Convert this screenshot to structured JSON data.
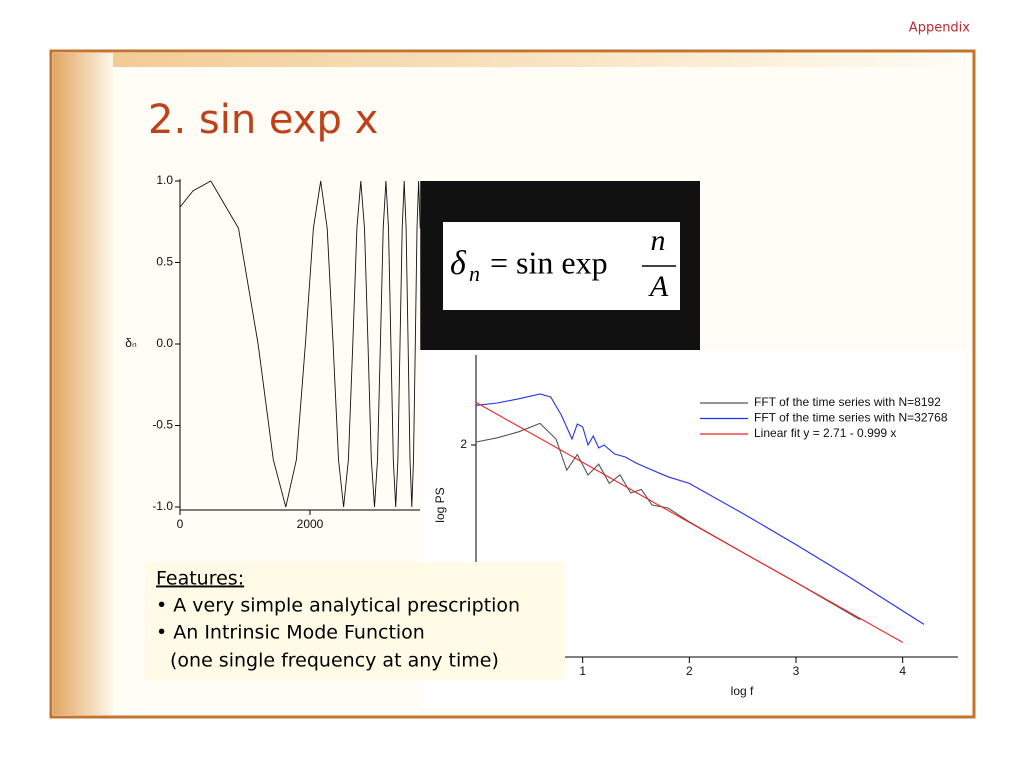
{
  "header": {
    "label": "Appendix"
  },
  "title": "2. sin exp x",
  "formula": {
    "symbol": "δ",
    "subscript": "n",
    "rhs": "= sin exp",
    "numerator": "n",
    "denominator": "A"
  },
  "features": {
    "heading": "Features:",
    "items": [
      "• A very simple analytical prescription",
      "• An Intrinsic Mode Function",
      "(one single frequency at any time)"
    ]
  },
  "chart_data": [
    {
      "type": "line",
      "ylabel": "δₙ",
      "color": "#111111",
      "x": [
        0,
        200,
        474,
        900,
        1202,
        1436,
        1628,
        1790,
        1930,
        2053,
        2164,
        2264,
        2355,
        2439,
        2517,
        2590,
        2658,
        2721,
        2781,
        2838,
        2892,
        2943,
        2992,
        3039,
        3083,
        3126,
        3167,
        3207,
        3245,
        3282,
        3318,
        3352,
        3385,
        3418,
        3449,
        3479,
        3509,
        3538,
        3566,
        3593,
        3620,
        3646,
        3671,
        3696
      ],
      "values": [
        0.84,
        0.94,
        1,
        0.71,
        0,
        -0.71,
        -1,
        -0.71,
        0,
        0.71,
        1,
        0.71,
        0,
        -0.71,
        -1,
        -0.71,
        0,
        0.71,
        1,
        0.71,
        0,
        -0.71,
        -1,
        -0.71,
        0,
        0.71,
        1,
        0.71,
        0,
        -0.71,
        -1,
        -0.71,
        0,
        0.71,
        1,
        0.71,
        0,
        -0.71,
        -1,
        -0.71,
        0,
        0.71,
        1,
        0.71
      ],
      "xlim": [
        0,
        8000
      ],
      "xticks": [
        0,
        2000
      ],
      "ylim": [
        -1,
        1
      ],
      "yticks": [
        {
          "value": 1,
          "label": "1.0"
        },
        0.5,
        {
          "value": 0,
          "label": "0.0"
        },
        -0.5,
        {
          "value": -1,
          "label": "-1.0"
        }
      ]
    },
    {
      "type": "line",
      "xlabel": "log f",
      "ylabel": "log PS",
      "legend": "upper right",
      "xlim": [
        0,
        4.5
      ],
      "xticks": [
        1,
        2,
        3,
        4
      ],
      "ylim": [
        -1.5,
        3.5
      ],
      "yticks": [
        2
      ],
      "series": [
        {
          "name": "FFT of the time series with N=8192",
          "color": "#555555",
          "x": [
            0,
            0.2,
            0.4,
            0.6,
            0.75,
            0.85,
            0.95,
            1.05,
            1.15,
            1.25,
            1.35,
            1.45,
            1.55,
            1.65,
            1.8,
            2.0,
            2.5,
            3.0,
            3.6
          ],
          "values": [
            2.05,
            2.12,
            2.22,
            2.36,
            2.1,
            1.58,
            1.84,
            1.5,
            1.68,
            1.36,
            1.5,
            1.2,
            1.26,
            1.0,
            0.95,
            0.72,
            0.21,
            -0.29,
            -0.91
          ]
        },
        {
          "name": "FFT of the time series with N=32768",
          "color": "#2233ee",
          "x": [
            0,
            0.2,
            0.4,
            0.6,
            0.7,
            0.8,
            0.9,
            0.95,
            1.0,
            1.05,
            1.1,
            1.15,
            1.2,
            1.3,
            1.4,
            1.5,
            1.6,
            1.8,
            2.0,
            2.5,
            3.0,
            3.5,
            4.2
          ],
          "values": [
            2.66,
            2.7,
            2.77,
            2.85,
            2.8,
            2.5,
            2.1,
            2.35,
            2.3,
            2.0,
            2.15,
            1.95,
            2.0,
            1.85,
            1.8,
            1.7,
            1.62,
            1.47,
            1.36,
            0.86,
            0.34,
            -0.2,
            -0.99
          ]
        },
        {
          "name": "Linear fit y = 2.71 - 0.999 x",
          "color": "#ee2222",
          "x": [
            0,
            4
          ],
          "values": [
            2.71,
            -1.29
          ]
        }
      ]
    }
  ]
}
